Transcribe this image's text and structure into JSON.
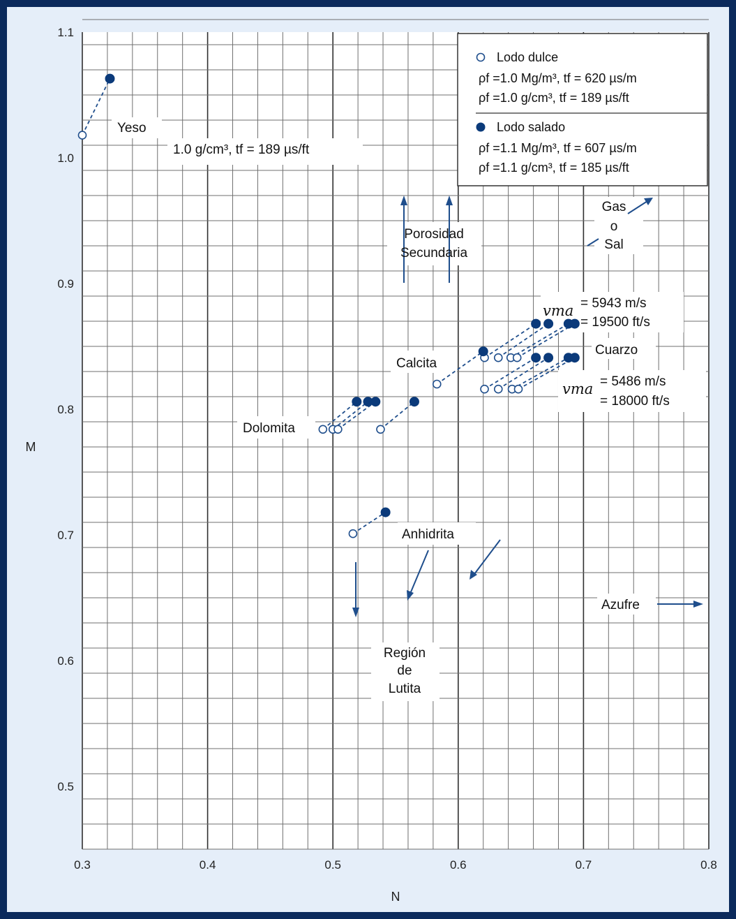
{
  "chart_data": {
    "type": "scatter",
    "xlabel": "N",
    "ylabel": "M",
    "xlim": [
      0.3,
      0.8
    ],
    "ylim": [
      0.45,
      1.1
    ],
    "x_ticks": [
      "0.3",
      "0.4",
      "0.5",
      "0.6",
      "0.7",
      "0.8"
    ],
    "y_ticks": [
      "0.5",
      "0.6",
      "0.7",
      "0.8",
      "0.9",
      "1.0",
      "1.1"
    ],
    "grid": true,
    "legend_position": "top-right",
    "legend": {
      "fresh_label": "Lodo dulce",
      "fresh_line1": "ρf =1.0 Mg/m³, tf = 620 µs/m",
      "fresh_line2": "ρf =1.0 g/cm³,   tf = 189 µs/ft",
      "salt_label": "Lodo salado",
      "salt_line1": "ρf =1.1 Mg/m³, tf = 607 µs/m",
      "salt_line2": "ρf =1.1   g/cm³, tf = 185 µs/ft"
    },
    "series": [
      {
        "name": "Lodo dulce",
        "marker": "open",
        "x": [
          0.3,
          0.492,
          0.5,
          0.504,
          0.538,
          0.583,
          0.621,
          0.632,
          0.642,
          0.647,
          0.621,
          0.632,
          0.643,
          0.648,
          0.516
        ],
        "y": [
          1.018,
          0.784,
          0.784,
          0.784,
          0.784,
          0.82,
          0.841,
          0.841,
          0.841,
          0.841,
          0.816,
          0.816,
          0.816,
          0.816,
          0.701
        ]
      },
      {
        "name": "Lodo salado",
        "marker": "filled",
        "x": [
          0.322,
          0.519,
          0.528,
          0.534,
          0.565,
          0.62,
          0.662,
          0.672,
          0.688,
          0.693,
          0.662,
          0.672,
          0.688,
          0.693,
          0.542
        ],
        "y": [
          1.063,
          0.806,
          0.806,
          0.806,
          0.806,
          0.846,
          0.868,
          0.868,
          0.868,
          0.868,
          0.841,
          0.841,
          0.841,
          0.841,
          0.718
        ]
      }
    ],
    "annotations": {
      "yeso": "Yeso",
      "yeso_fluid": "1.0 g/cm³,  tf = 189 µs/ft",
      "porosidad_1": "Porosidad",
      "porosidad_2": "Secundaria",
      "gas_1": "Gas",
      "gas_2": "o",
      "gas_3": "Sal",
      "vma1_sym": "vma",
      "vma1_a": "=  5943 m/s",
      "vma1_b": "=  19500 ft/s",
      "cuarzo": "Cuarzo",
      "calcita": "Calcita",
      "vma2_sym": "vma",
      "vma2_a": "=  5486  m/s",
      "vma2_b": "=  18000 ft/s",
      "dolomita": "Dolomita",
      "anhidrita": "Anhidrita",
      "azufre": "Azufre",
      "region_1": "Región",
      "region_2": "de",
      "region_3": "Lutita"
    },
    "colors": {
      "marker": "#0b3a7a",
      "frame": "#0b2a5c",
      "background": "#e5eef9"
    }
  }
}
